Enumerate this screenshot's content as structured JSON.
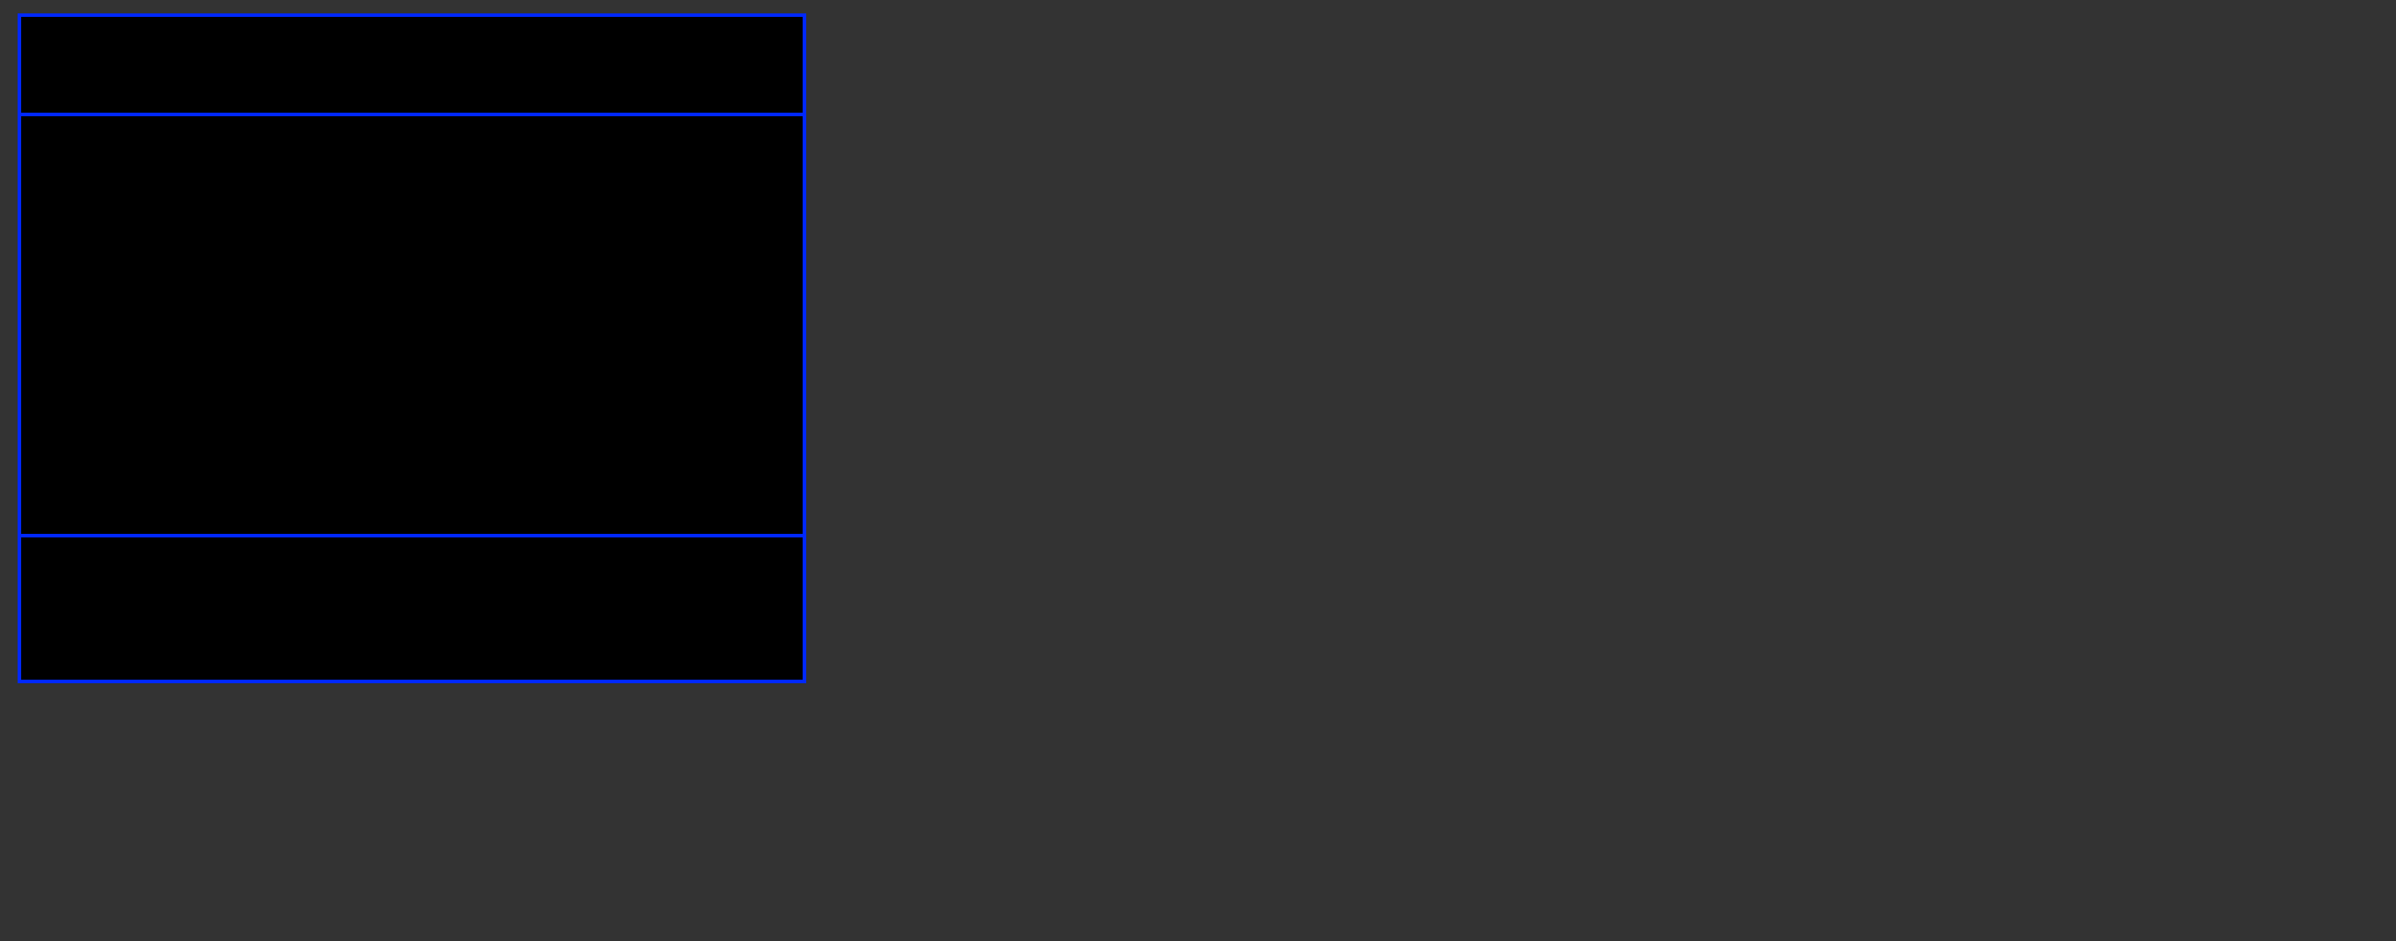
{
  "colors": {
    "background": "#333333",
    "panel": "#000000",
    "border": "#0028ff"
  }
}
